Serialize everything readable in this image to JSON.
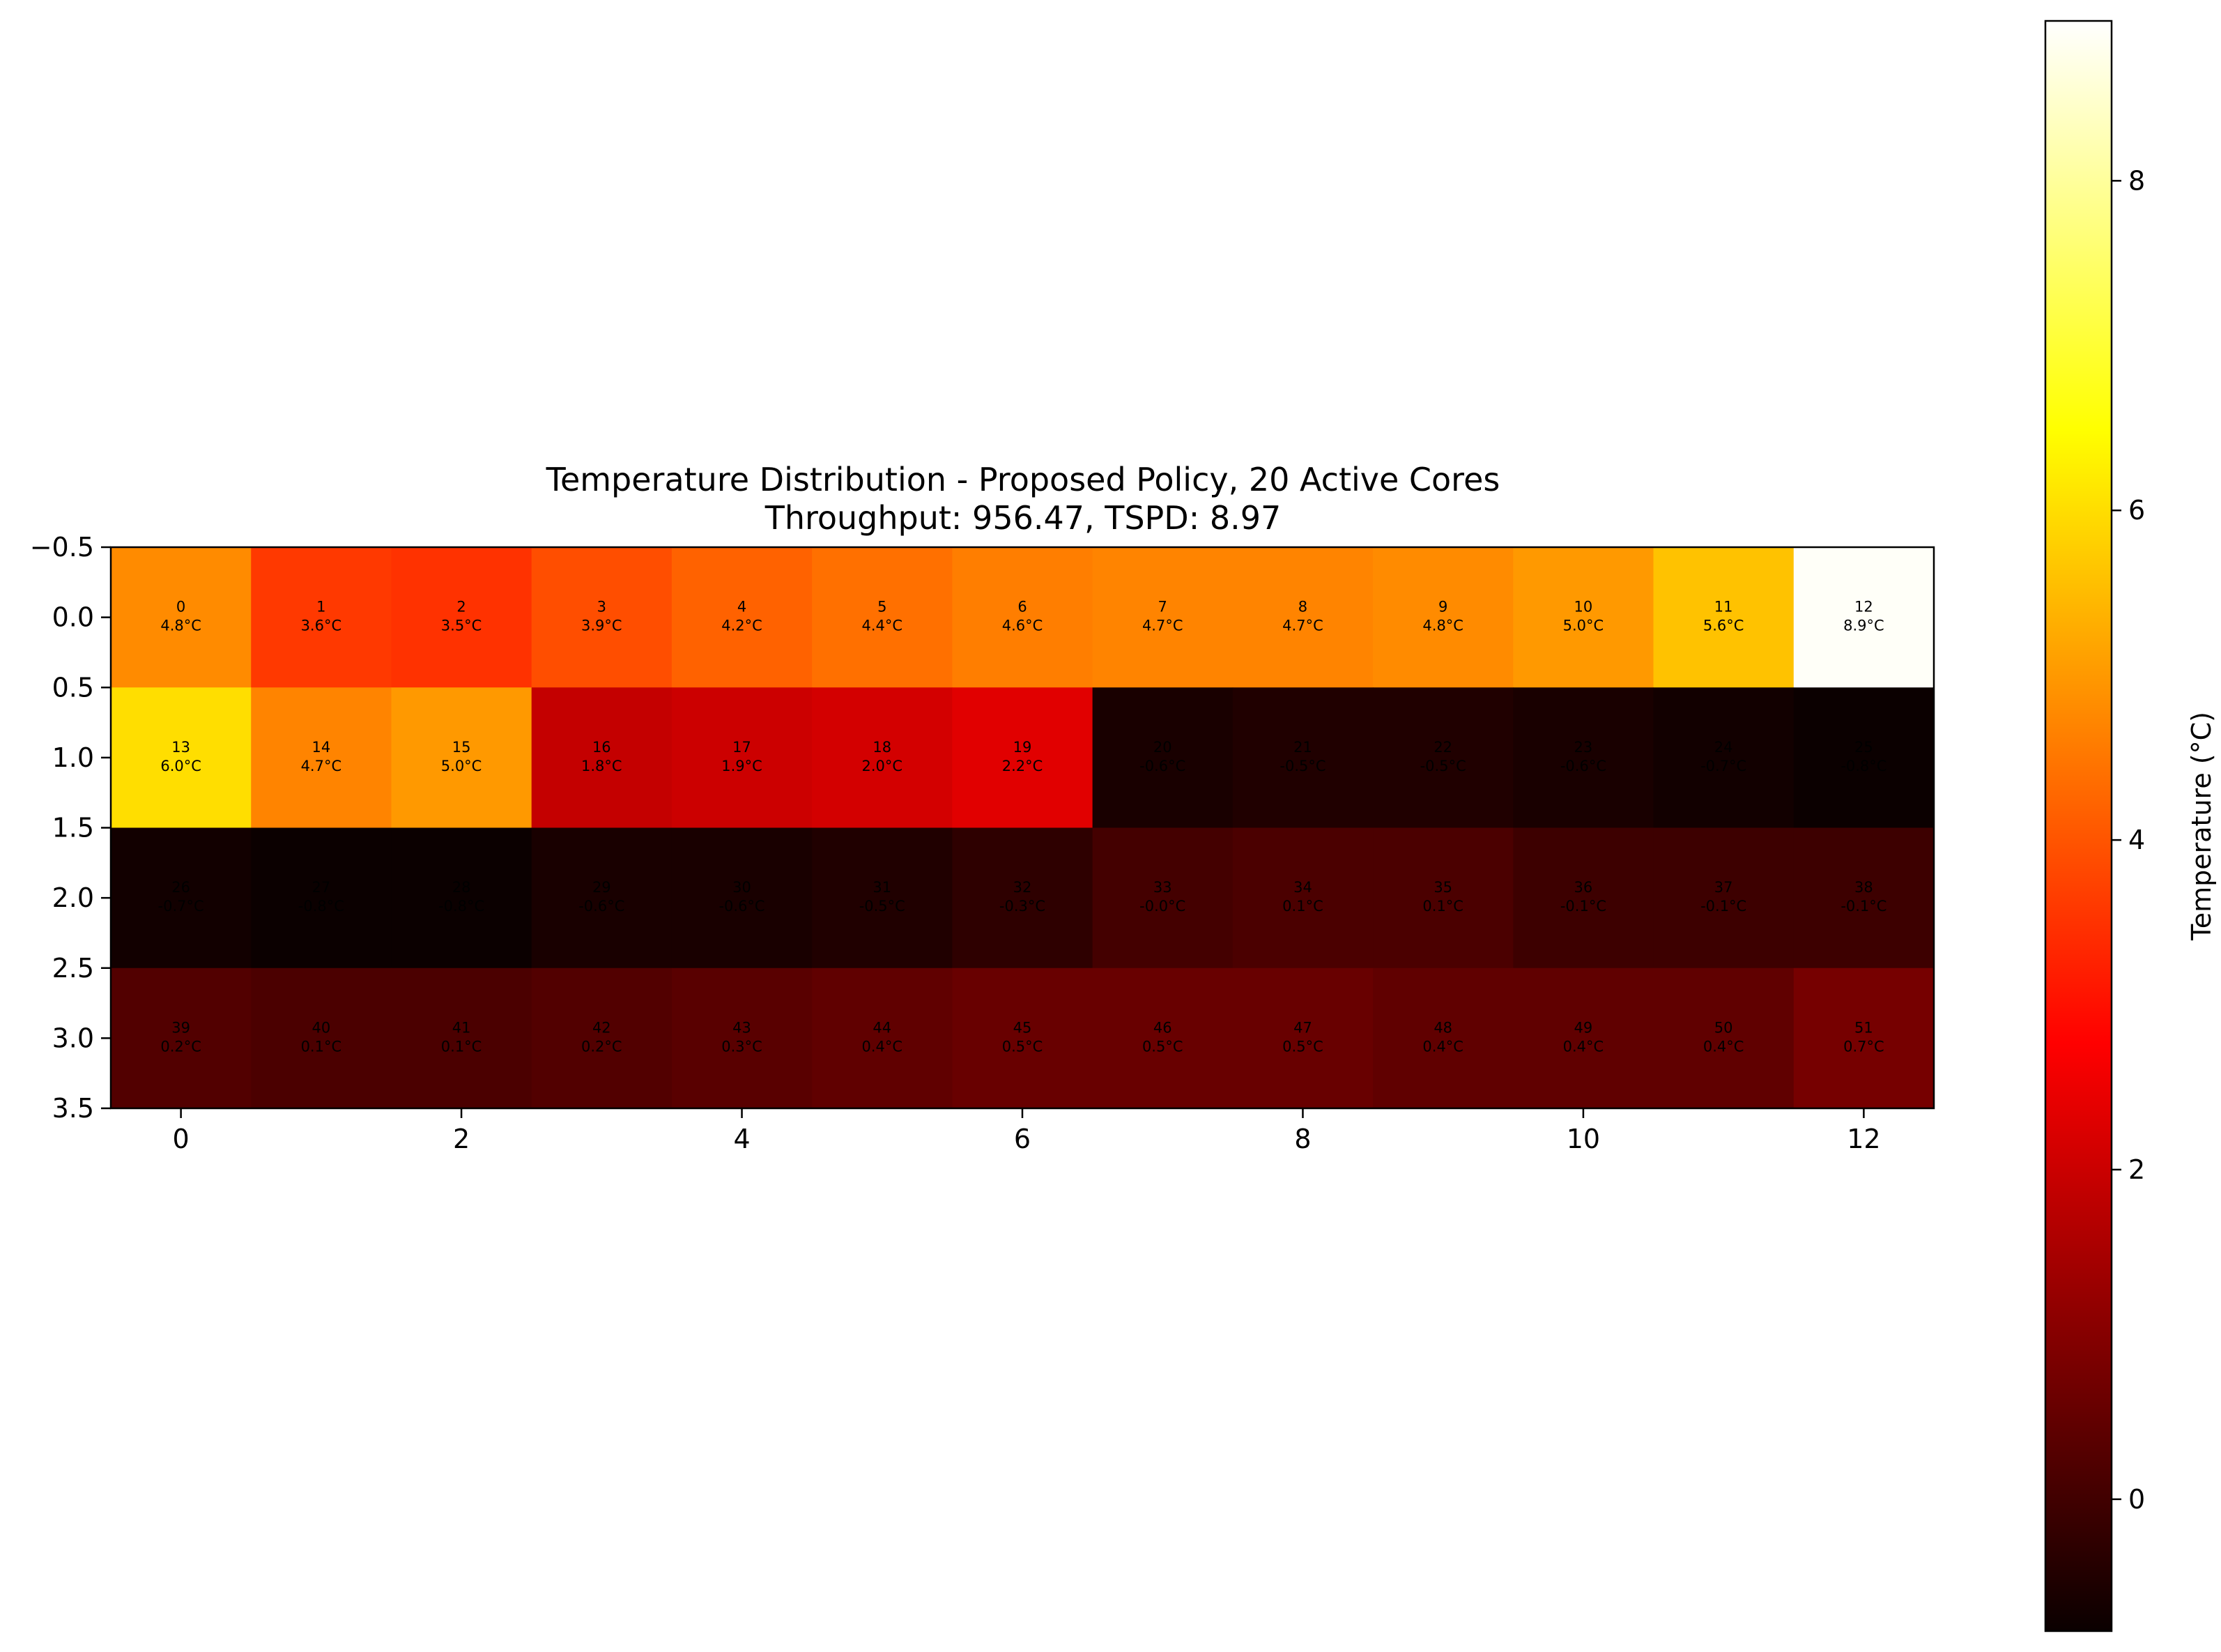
{
  "chart_data": {
    "type": "heatmap",
    "title": "Temperature Distribution - Proposed Policy, 20 Active Cores",
    "subtitle": "Throughput: 956.47, TSPD: 8.97",
    "xlabel": "",
    "ylabel": "",
    "x_ticks": [
      "0",
      "2",
      "4",
      "6",
      "8",
      "10",
      "12"
    ],
    "y_ticks": [
      "−0.5",
      "0.0",
      "0.5",
      "1.0",
      "1.5",
      "2.0",
      "2.5",
      "3.0",
      "3.5"
    ],
    "xlim": [
      -0.5,
      12.5
    ],
    "ylim": [
      3.5,
      -0.5
    ],
    "colormap": "hot",
    "colorbar": {
      "label": "Temperature (°C)",
      "range": [
        -0.8,
        8.97
      ],
      "ticks": [
        "0",
        "2",
        "4",
        "6",
        "8"
      ]
    },
    "rows": 4,
    "cols": 13,
    "cells": [
      {
        "id": "0",
        "value": 4.8,
        "label": "4.8°C"
      },
      {
        "id": "1",
        "value": 3.6,
        "label": "3.6°C"
      },
      {
        "id": "2",
        "value": 3.5,
        "label": "3.5°C"
      },
      {
        "id": "3",
        "value": 3.9,
        "label": "3.9°C"
      },
      {
        "id": "4",
        "value": 4.2,
        "label": "4.2°C"
      },
      {
        "id": "5",
        "value": 4.4,
        "label": "4.4°C"
      },
      {
        "id": "6",
        "value": 4.6,
        "label": "4.6°C"
      },
      {
        "id": "7",
        "value": 4.7,
        "label": "4.7°C"
      },
      {
        "id": "8",
        "value": 4.7,
        "label": "4.7°C"
      },
      {
        "id": "9",
        "value": 4.8,
        "label": "4.8°C"
      },
      {
        "id": "10",
        "value": 5.0,
        "label": "5.0°C"
      },
      {
        "id": "11",
        "value": 5.6,
        "label": "5.6°C"
      },
      {
        "id": "12",
        "value": 8.9,
        "label": "8.9°C"
      },
      {
        "id": "13",
        "value": 6.0,
        "label": "6.0°C"
      },
      {
        "id": "14",
        "value": 4.7,
        "label": "4.7°C"
      },
      {
        "id": "15",
        "value": 5.0,
        "label": "5.0°C"
      },
      {
        "id": "16",
        "value": 1.8,
        "label": "1.8°C"
      },
      {
        "id": "17",
        "value": 1.9,
        "label": "1.9°C"
      },
      {
        "id": "18",
        "value": 2.0,
        "label": "2.0°C"
      },
      {
        "id": "19",
        "value": 2.2,
        "label": "2.2°C"
      },
      {
        "id": "20",
        "value": -0.6,
        "label": "-0.6°C"
      },
      {
        "id": "21",
        "value": -0.5,
        "label": "-0.5°C"
      },
      {
        "id": "22",
        "value": -0.5,
        "label": "-0.5°C"
      },
      {
        "id": "23",
        "value": -0.6,
        "label": "-0.6°C"
      },
      {
        "id": "24",
        "value": -0.7,
        "label": "-0.7°C"
      },
      {
        "id": "25",
        "value": -0.8,
        "label": "-0.8°C"
      },
      {
        "id": "26",
        "value": -0.7,
        "label": "-0.7°C"
      },
      {
        "id": "27",
        "value": -0.8,
        "label": "-0.8°C"
      },
      {
        "id": "28",
        "value": -0.8,
        "label": "-0.8°C"
      },
      {
        "id": "29",
        "value": -0.6,
        "label": "-0.6°C"
      },
      {
        "id": "30",
        "value": -0.6,
        "label": "-0.6°C"
      },
      {
        "id": "31",
        "value": -0.5,
        "label": "-0.5°C"
      },
      {
        "id": "32",
        "value": -0.3,
        "label": "-0.3°C"
      },
      {
        "id": "33",
        "value": -0.0,
        "label": "-0.0°C"
      },
      {
        "id": "34",
        "value": 0.1,
        "label": "0.1°C"
      },
      {
        "id": "35",
        "value": 0.1,
        "label": "0.1°C"
      },
      {
        "id": "36",
        "value": -0.1,
        "label": "-0.1°C"
      },
      {
        "id": "37",
        "value": -0.1,
        "label": "-0.1°C"
      },
      {
        "id": "38",
        "value": -0.1,
        "label": "-0.1°C"
      },
      {
        "id": "39",
        "value": 0.2,
        "label": "0.2°C"
      },
      {
        "id": "40",
        "value": 0.1,
        "label": "0.1°C"
      },
      {
        "id": "41",
        "value": 0.1,
        "label": "0.1°C"
      },
      {
        "id": "42",
        "value": 0.2,
        "label": "0.2°C"
      },
      {
        "id": "43",
        "value": 0.3,
        "label": "0.3°C"
      },
      {
        "id": "44",
        "value": 0.4,
        "label": "0.4°C"
      },
      {
        "id": "45",
        "value": 0.5,
        "label": "0.5°C"
      },
      {
        "id": "46",
        "value": 0.5,
        "label": "0.5°C"
      },
      {
        "id": "47",
        "value": 0.5,
        "label": "0.5°C"
      },
      {
        "id": "48",
        "value": 0.4,
        "label": "0.4°C"
      },
      {
        "id": "49",
        "value": 0.4,
        "label": "0.4°C"
      },
      {
        "id": "50",
        "value": 0.4,
        "label": "0.4°C"
      },
      {
        "id": "51",
        "value": 0.7,
        "label": "0.7°C"
      }
    ]
  }
}
